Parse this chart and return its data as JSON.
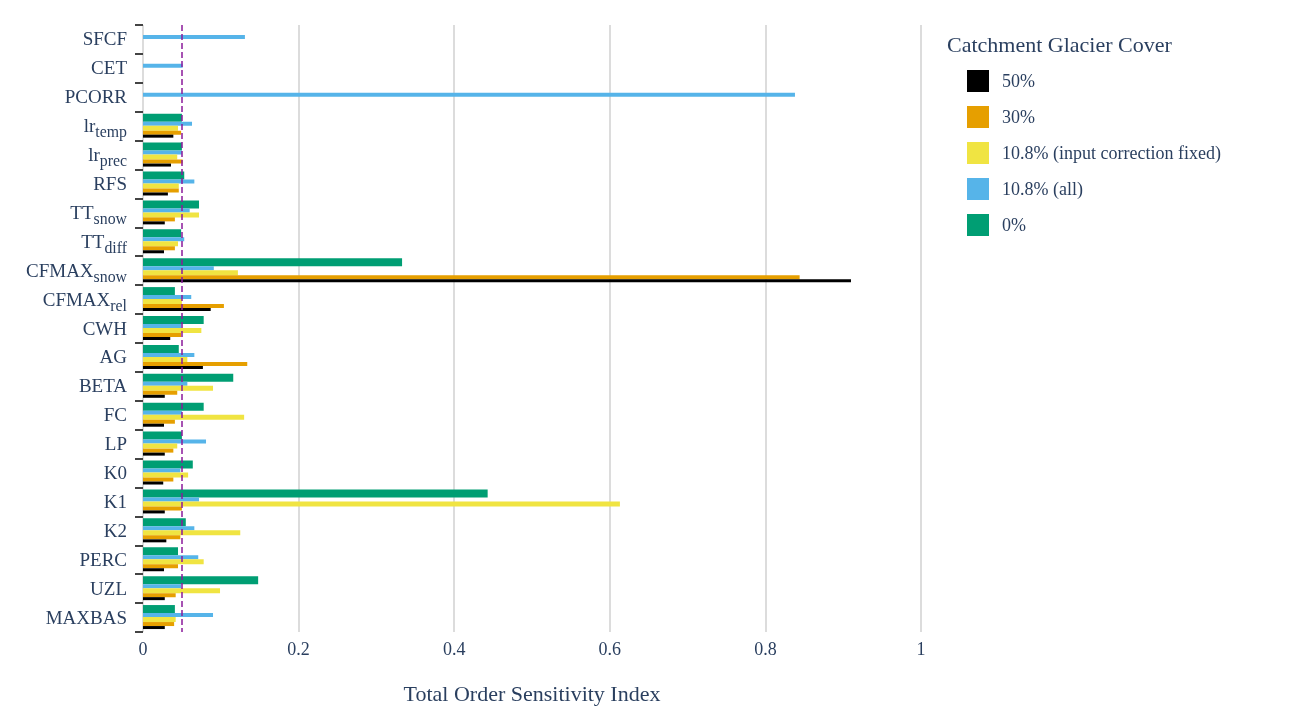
{
  "chart_data": {
    "type": "bar",
    "orientation": "horizontal",
    "xlabel": "Total Order Sensitivity Index",
    "legend_title": "Catchment Glacier Cover",
    "categories": [
      "SFCF",
      "CET",
      "PCORR",
      "lr$_{temp}$",
      "lr$_{prec}$",
      "RFS",
      "TT$_{snow}$",
      "TT$_{diff}$",
      "CFMAX$_{snow}$",
      "CFMAX$_{rel}$",
      "CWH",
      "AG",
      "BETA",
      "FC",
      "LP",
      "K0",
      "K1",
      "K2",
      "PERC",
      "UZL",
      "MAXBAS"
    ],
    "series": [
      {
        "name": "50%",
        "color": "#000000",
        "values": [
          null,
          null,
          null,
          0.039,
          0.036,
          0.032,
          0.028,
          0.027,
          0.91,
          0.087,
          0.035,
          0.077,
          0.028,
          0.027,
          0.028,
          0.026,
          0.028,
          0.03,
          0.027,
          0.028,
          0.028
        ]
      },
      {
        "name": "30%",
        "color": "#e69f00",
        "values": [
          null,
          null,
          null,
          0.049,
          0.051,
          0.046,
          0.041,
          0.041,
          0.844,
          0.104,
          0.049,
          0.134,
          0.044,
          0.041,
          0.039,
          0.039,
          0.05,
          0.048,
          0.045,
          0.042,
          0.04
        ]
      },
      {
        "name": "10.8% (input correction fixed)",
        "color": "#f0e442",
        "values": [
          null,
          null,
          null,
          0.045,
          0.044,
          0.046,
          0.072,
          0.045,
          0.122,
          0.05,
          0.075,
          0.057,
          0.09,
          0.13,
          0.044,
          0.058,
          0.613,
          0.125,
          0.078,
          0.099,
          0.042
        ]
      },
      {
        "name": "10.8% (all)",
        "color": "#56b4e9",
        "values": [
          0.131,
          0.051,
          0.838,
          0.063,
          0.05,
          0.066,
          0.06,
          0.053,
          0.091,
          0.062,
          0.049,
          0.066,
          0.057,
          0.05,
          0.081,
          0.048,
          0.072,
          0.066,
          0.071,
          0.049,
          0.09
        ]
      },
      {
        "name": "0%",
        "color": "#009e73",
        "values": [
          null,
          null,
          null,
          0.05,
          0.05,
          0.053,
          0.072,
          0.049,
          0.333,
          0.041,
          0.078,
          0.046,
          0.116,
          0.078,
          0.05,
          0.064,
          0.443,
          0.055,
          0.045,
          0.148,
          0.041
        ]
      }
    ],
    "xlim": [
      0,
      1
    ],
    "xticks": [
      0,
      0.2,
      0.4,
      0.6,
      0.8,
      1
    ],
    "ref_lines": [
      {
        "axis": "x",
        "value": 0.05,
        "color": "#8b1a9b",
        "line_style": "dashed"
      }
    ],
    "grid": "x",
    "legend": "top right"
  }
}
